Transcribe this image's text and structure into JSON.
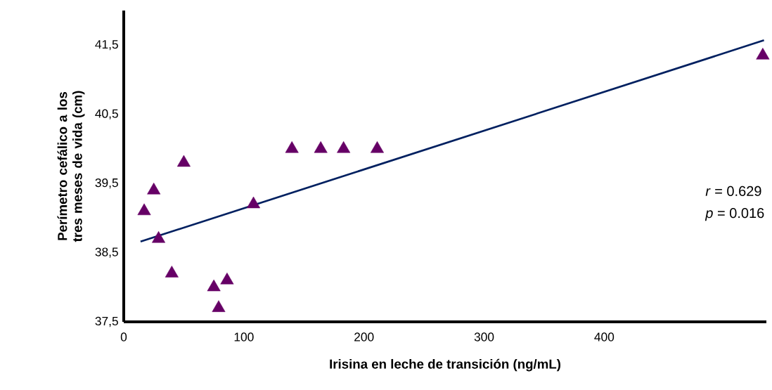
{
  "chart_data": {
    "type": "scatter",
    "xlabel": "Irisina en leche de transición (ng/mL)",
    "ylabel": "Perímetro cefálico a los tres meses de vida (cm)",
    "xlim": [
      0,
      535
    ],
    "ylim": [
      37.5,
      42
    ],
    "xticks": [
      0,
      100,
      200,
      300,
      400
    ],
    "yticks": [
      {
        "value": 37.5,
        "label": "37,5"
      },
      {
        "value": 38.5,
        "label": "38,5"
      },
      {
        "value": 39.5,
        "label": "39,5"
      },
      {
        "value": 40.5,
        "label": "40,5"
      },
      {
        "value": 41.5,
        "label": "41,5"
      }
    ],
    "grid": false,
    "annotations": [
      "*r* = 0.629",
      "*p* = 0.016"
    ],
    "series": [
      {
        "marker": "triangle",
        "color": "#660066",
        "x": [
          17,
          25,
          29,
          40,
          50,
          75,
          79,
          86,
          108,
          140,
          164,
          183,
          211,
          532
        ],
        "values": [
          39.1,
          39.4,
          38.7,
          38.2,
          39.8,
          38.0,
          37.7,
          38.1,
          39.2,
          40.0,
          40.0,
          40.0,
          40.0,
          41.35
        ]
      },
      {
        "type": "line",
        "marker": "none",
        "line_style": "solid",
        "color": "#002060",
        "x": [
          14,
          533
        ],
        "values": [
          38.66,
          41.57
        ]
      }
    ]
  }
}
